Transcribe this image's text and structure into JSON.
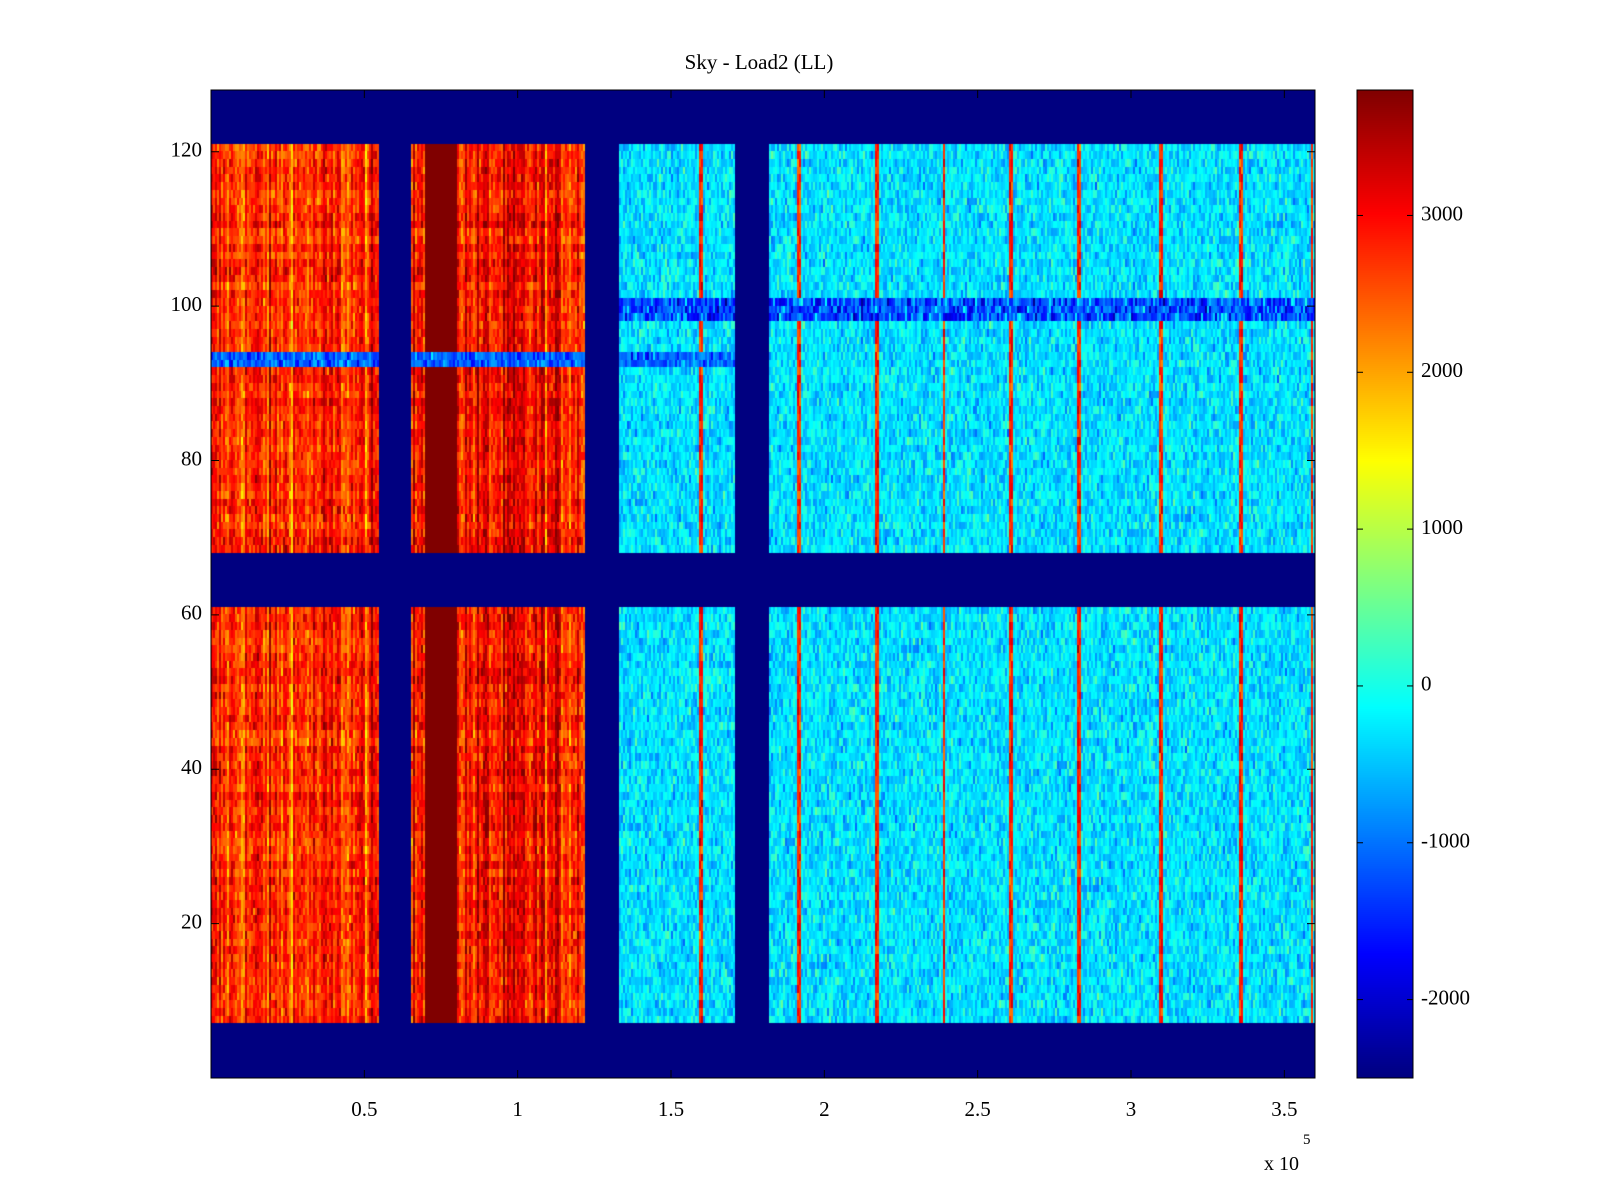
{
  "chart_data": {
    "type": "heatmap",
    "title": "Sky - Load2 (LL)",
    "xlabel": "",
    "ylabel": "",
    "x_exponent_label": "x 10",
    "x_exponent_power": "5",
    "xlim": [
      0,
      3.6
    ],
    "ylim": [
      0,
      128
    ],
    "xticks": [
      0.5,
      1,
      1.5,
      2,
      2.5,
      3,
      3.5
    ],
    "xtick_labels": [
      "0.5",
      "1",
      "1.5",
      "2",
      "2.5",
      "3",
      "3.5"
    ],
    "yticks": [
      20,
      40,
      60,
      80,
      100,
      120
    ],
    "ytick_labels": [
      "20",
      "40",
      "60",
      "80",
      "100",
      "120"
    ],
    "colorbar": {
      "min": -2500,
      "max": 3800,
      "ticks": [
        -2000,
        -1000,
        0,
        1000,
        2000,
        3000
      ],
      "tick_labels": [
        "-2000",
        "-1000",
        "0",
        "1000",
        "2000",
        "3000"
      ],
      "colormap": "jet"
    },
    "masked_row_ranges": [
      [
        0,
        7
      ],
      [
        61,
        68
      ],
      [
        121,
        128
      ]
    ],
    "masked_col_ranges": [
      [
        0.55,
        0.65
      ],
      [
        1.22,
        1.33
      ],
      [
        1.71,
        1.82
      ]
    ],
    "segments": [
      {
        "x_range": [
          0,
          0.55
        ],
        "mean_value": 2700,
        "description": "high"
      },
      {
        "x_range": [
          0.65,
          1.22
        ],
        "mean_value": 2900,
        "description": "high"
      },
      {
        "x_range": [
          1.33,
          1.71
        ],
        "mean_value": -300,
        "description": "near zero"
      },
      {
        "x_range": [
          1.82,
          3.6
        ],
        "mean_value": -300,
        "description": "near zero"
      }
    ],
    "saturated_x_range": [
      0.7,
      0.8
    ],
    "hot_columns": [
      1.6,
      1.92,
      2.17,
      2.39,
      2.61,
      2.83,
      3.1,
      3.36,
      3.59
    ],
    "low_band_rows": {
      "x_range": [
        0,
        1.82
      ],
      "y_range": [
        92,
        94
      ]
    },
    "band_rows_right": {
      "x_range": [
        1.33,
        3.6
      ],
      "y_range": [
        98,
        101
      ]
    }
  }
}
